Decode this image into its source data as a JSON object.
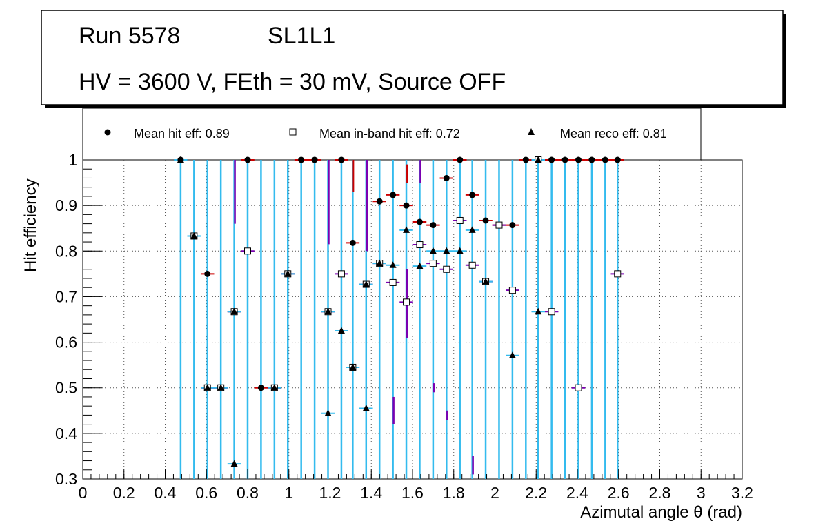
{
  "title_box": {
    "run_label": "Run 5578",
    "layer_label": "SL1L1",
    "conditions": "HV = 3600 V, FEth = 30 mV, Source OFF"
  },
  "legend": {
    "hit": "Mean hit  eff: 0.89",
    "inband": "Mean in-band hit eff: 0.72",
    "reco": "Mean reco eff: 0.81"
  },
  "colors": {
    "hit_err": "#cc0000",
    "inband_err": "#7a00b0",
    "reco_err": "#33bbee",
    "marker": "#000000",
    "grid": "#555555"
  },
  "chart_data": {
    "type": "scatter",
    "xlabel": "Azimutal angle θ (rad)",
    "ylabel": "Hit efficiency",
    "xlim": [
      0,
      3.2
    ],
    "ylim": [
      0.3,
      1.0
    ],
    "grid": true,
    "x_ticks": [
      "0",
      "0.2",
      "0.4",
      "0.6",
      "0.8",
      "1",
      "1.2",
      "1.4",
      "1.6",
      "1.8",
      "2",
      "2.2",
      "2.4",
      "2.6",
      "2.8",
      "3",
      "3.2"
    ],
    "y_ticks": [
      "0.3",
      "0.4",
      "0.5",
      "0.6",
      "0.7",
      "0.8",
      "0.9",
      "1"
    ],
    "bin_half_width": 0.0327,
    "series": [
      {
        "name": "Mean hit eff",
        "marker": "circle",
        "points": [
          {
            "x": 0.475,
            "y": 1.0
          },
          {
            "x": 0.54,
            "y": 0.833
          },
          {
            "x": 0.605,
            "y": 0.75
          },
          {
            "x": 0.605,
            "y": 0.5
          },
          {
            "x": 0.67,
            "y": 0.5
          },
          {
            "x": 0.735,
            "y": 0.667
          },
          {
            "x": 0.8,
            "y": 1.0
          },
          {
            "x": 0.865,
            "y": 0.5
          },
          {
            "x": 0.93,
            "y": 0.5
          },
          {
            "x": 0.995,
            "y": 0.75
          },
          {
            "x": 1.06,
            "y": 1.0
          },
          {
            "x": 1.125,
            "y": 1.0
          },
          {
            "x": 1.19,
            "y": 0.667
          },
          {
            "x": 1.255,
            "y": 1.0
          },
          {
            "x": 1.31,
            "y": 0.818
          },
          {
            "x": 1.375,
            "y": 0.727
          },
          {
            "x": 1.44,
            "y": 0.909
          },
          {
            "x": 1.505,
            "y": 0.923
          },
          {
            "x": 1.57,
            "y": 0.9
          },
          {
            "x": 1.635,
            "y": 0.864
          },
          {
            "x": 1.7,
            "y": 0.857
          },
          {
            "x": 1.765,
            "y": 0.96
          },
          {
            "x": 1.83,
            "y": 1.0
          },
          {
            "x": 1.89,
            "y": 0.923
          },
          {
            "x": 1.955,
            "y": 0.867
          },
          {
            "x": 2.02,
            "y": 0.857
          },
          {
            "x": 2.085,
            "y": 0.857
          },
          {
            "x": 2.15,
            "y": 1.0
          },
          {
            "x": 2.21,
            "y": 1.0
          },
          {
            "x": 2.275,
            "y": 1.0
          },
          {
            "x": 2.34,
            "y": 1.0
          },
          {
            "x": 2.405,
            "y": 1.0
          },
          {
            "x": 2.47,
            "y": 1.0
          },
          {
            "x": 2.535,
            "y": 1.0
          },
          {
            "x": 2.595,
            "y": 1.0
          }
        ]
      },
      {
        "name": "Mean in-band hit eff",
        "marker": "open-square",
        "points": [
          {
            "x": 0.54,
            "y": 0.833
          },
          {
            "x": 0.605,
            "y": 0.5
          },
          {
            "x": 0.67,
            "y": 0.5
          },
          {
            "x": 0.735,
            "y": 0.667
          },
          {
            "x": 0.8,
            "y": 0.8
          },
          {
            "x": 0.93,
            "y": 0.5
          },
          {
            "x": 0.995,
            "y": 0.75
          },
          {
            "x": 1.19,
            "y": 0.667
          },
          {
            "x": 1.255,
            "y": 0.75
          },
          {
            "x": 1.31,
            "y": 0.545
          },
          {
            "x": 1.375,
            "y": 0.727
          },
          {
            "x": 1.44,
            "y": 0.773
          },
          {
            "x": 1.505,
            "y": 0.731
          },
          {
            "x": 1.57,
            "y": 0.688
          },
          {
            "x": 1.635,
            "y": 0.814
          },
          {
            "x": 1.7,
            "y": 0.773
          },
          {
            "x": 1.765,
            "y": 0.76
          },
          {
            "x": 1.83,
            "y": 0.867
          },
          {
            "x": 1.89,
            "y": 0.769
          },
          {
            "x": 1.955,
            "y": 0.733
          },
          {
            "x": 2.02,
            "y": 0.857
          },
          {
            "x": 2.085,
            "y": 0.714
          },
          {
            "x": 2.21,
            "y": 1.0
          },
          {
            "x": 2.275,
            "y": 0.667
          },
          {
            "x": 2.405,
            "y": 0.5
          },
          {
            "x": 2.595,
            "y": 0.75
          }
        ]
      },
      {
        "name": "Mean reco eff",
        "marker": "triangle",
        "points": [
          {
            "x": 0.475,
            "y": 1.0
          },
          {
            "x": 0.54,
            "y": 0.833
          },
          {
            "x": 0.605,
            "y": 0.5
          },
          {
            "x": 0.67,
            "y": 0.5
          },
          {
            "x": 0.735,
            "y": 0.667
          },
          {
            "x": 0.735,
            "y": 0.333
          },
          {
            "x": 0.93,
            "y": 0.5
          },
          {
            "x": 0.995,
            "y": 0.75
          },
          {
            "x": 1.19,
            "y": 0.667
          },
          {
            "x": 1.19,
            "y": 0.444
          },
          {
            "x": 1.255,
            "y": 0.625
          },
          {
            "x": 1.31,
            "y": 0.545
          },
          {
            "x": 1.375,
            "y": 0.727
          },
          {
            "x": 1.375,
            "y": 0.455
          },
          {
            "x": 1.44,
            "y": 0.773
          },
          {
            "x": 1.505,
            "y": 0.769
          },
          {
            "x": 1.57,
            "y": 0.846
          },
          {
            "x": 1.635,
            "y": 0.767
          },
          {
            "x": 1.7,
            "y": 0.8
          },
          {
            "x": 1.765,
            "y": 0.8
          },
          {
            "x": 1.83,
            "y": 0.8
          },
          {
            "x": 1.89,
            "y": 0.846
          },
          {
            "x": 1.955,
            "y": 0.733
          },
          {
            "x": 2.085,
            "y": 0.571
          },
          {
            "x": 2.21,
            "y": 0.667
          },
          {
            "x": 2.21,
            "y": 1.0
          }
        ]
      }
    ],
    "error_bars": {
      "reco_full_bins_x": [
        0.475,
        0.54,
        0.605,
        0.67,
        0.735,
        0.8,
        0.865,
        0.93,
        0.995,
        1.06,
        1.125,
        1.19,
        1.255,
        1.31,
        1.375,
        1.44,
        1.505,
        1.57,
        1.635,
        1.7,
        1.765,
        1.83,
        1.89,
        1.955,
        2.02,
        2.085,
        2.15,
        2.21,
        2.275,
        2.34,
        2.405,
        2.47,
        2.535,
        2.595
      ],
      "inband_segments": [
        {
          "x": 0.735,
          "lo": 0.86,
          "hi": 1.0
        },
        {
          "x": 1.19,
          "lo": 0.815,
          "hi": 1.0
        },
        {
          "x": 1.375,
          "lo": 0.8,
          "hi": 1.0
        },
        {
          "x": 1.505,
          "lo": 0.42,
          "hi": 0.48
        },
        {
          "x": 1.57,
          "lo": 0.61,
          "hi": 0.76
        },
        {
          "x": 1.635,
          "lo": 0.95,
          "hi": 1.0
        },
        {
          "x": 1.7,
          "lo": 0.49,
          "hi": 0.51
        },
        {
          "x": 1.765,
          "lo": 0.43,
          "hi": 0.45
        },
        {
          "x": 1.89,
          "lo": 0.31,
          "hi": 0.35
        }
      ],
      "hit_segments": [
        {
          "x": 1.31,
          "lo": 0.93,
          "hi": 1.0
        },
        {
          "x": 1.57,
          "lo": 0.95,
          "hi": 0.99
        }
      ]
    }
  }
}
